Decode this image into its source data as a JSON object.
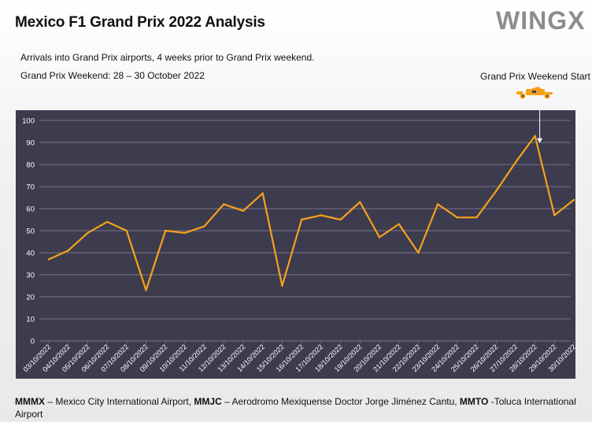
{
  "header": {
    "title": "Mexico F1 Grand Prix 2022 Analysis",
    "logo_text": "WINGX",
    "subtitle_1": "Arrivals into Grand Prix airports, 4 weeks prior to Grand Prix weekend.",
    "subtitle_2": "Grand Prix Weekend: 28 – 30 October 2022"
  },
  "annotation": {
    "label": "Grand Prix Weekend Start",
    "icon": "race-car-icon",
    "points_to": "28/10/2022",
    "color": "#f5a21b"
  },
  "chart_data": {
    "type": "line",
    "title": "",
    "xlabel": "",
    "ylabel": "",
    "ylim": [
      0,
      100
    ],
    "yticks": [
      0,
      10,
      20,
      30,
      40,
      50,
      60,
      70,
      80,
      90,
      100
    ],
    "grid": true,
    "legend": "none",
    "colors": {
      "line": "#f5a21b",
      "background": "#3d3b4e",
      "grid": "#8a8898",
      "text": "#ffffff"
    },
    "categories": [
      "03/10/2022",
      "04/10/2022",
      "05/10/2022",
      "06/10/2022",
      "07/10/2022",
      "08/10/2022",
      "09/10/2022",
      "10/10/2022",
      "11/10/2022",
      "12/10/2022",
      "13/10/2022",
      "14/10/2022",
      "15/10/2022",
      "16/10/2022",
      "17/10/2022",
      "18/10/2022",
      "19/10/2022",
      "20/10/2022",
      "21/10/2022",
      "22/10/2022",
      "23/10/2022",
      "24/10/2022",
      "25/10/2022",
      "26/10/2022",
      "27/10/2022",
      "28/10/2022",
      "29/10/2022",
      "30/10/2022"
    ],
    "values": [
      37,
      41,
      49,
      54,
      50,
      23,
      50,
      49,
      52,
      62,
      59,
      67,
      25,
      55,
      57,
      55,
      63,
      47,
      53,
      40,
      62,
      56,
      56,
      68,
      81,
      93,
      57,
      64
    ]
  },
  "footer": {
    "a1_code": "MMMX",
    "a1_text": " – Mexico City International Airport, ",
    "a2_code": "MMJC",
    "a2_text": " – Aerodromo Mexiquense Doctor Jorge Jiménez Cantu, ",
    "a3_code": "MMTO",
    "a3_text": " -Toluca International Airport"
  }
}
